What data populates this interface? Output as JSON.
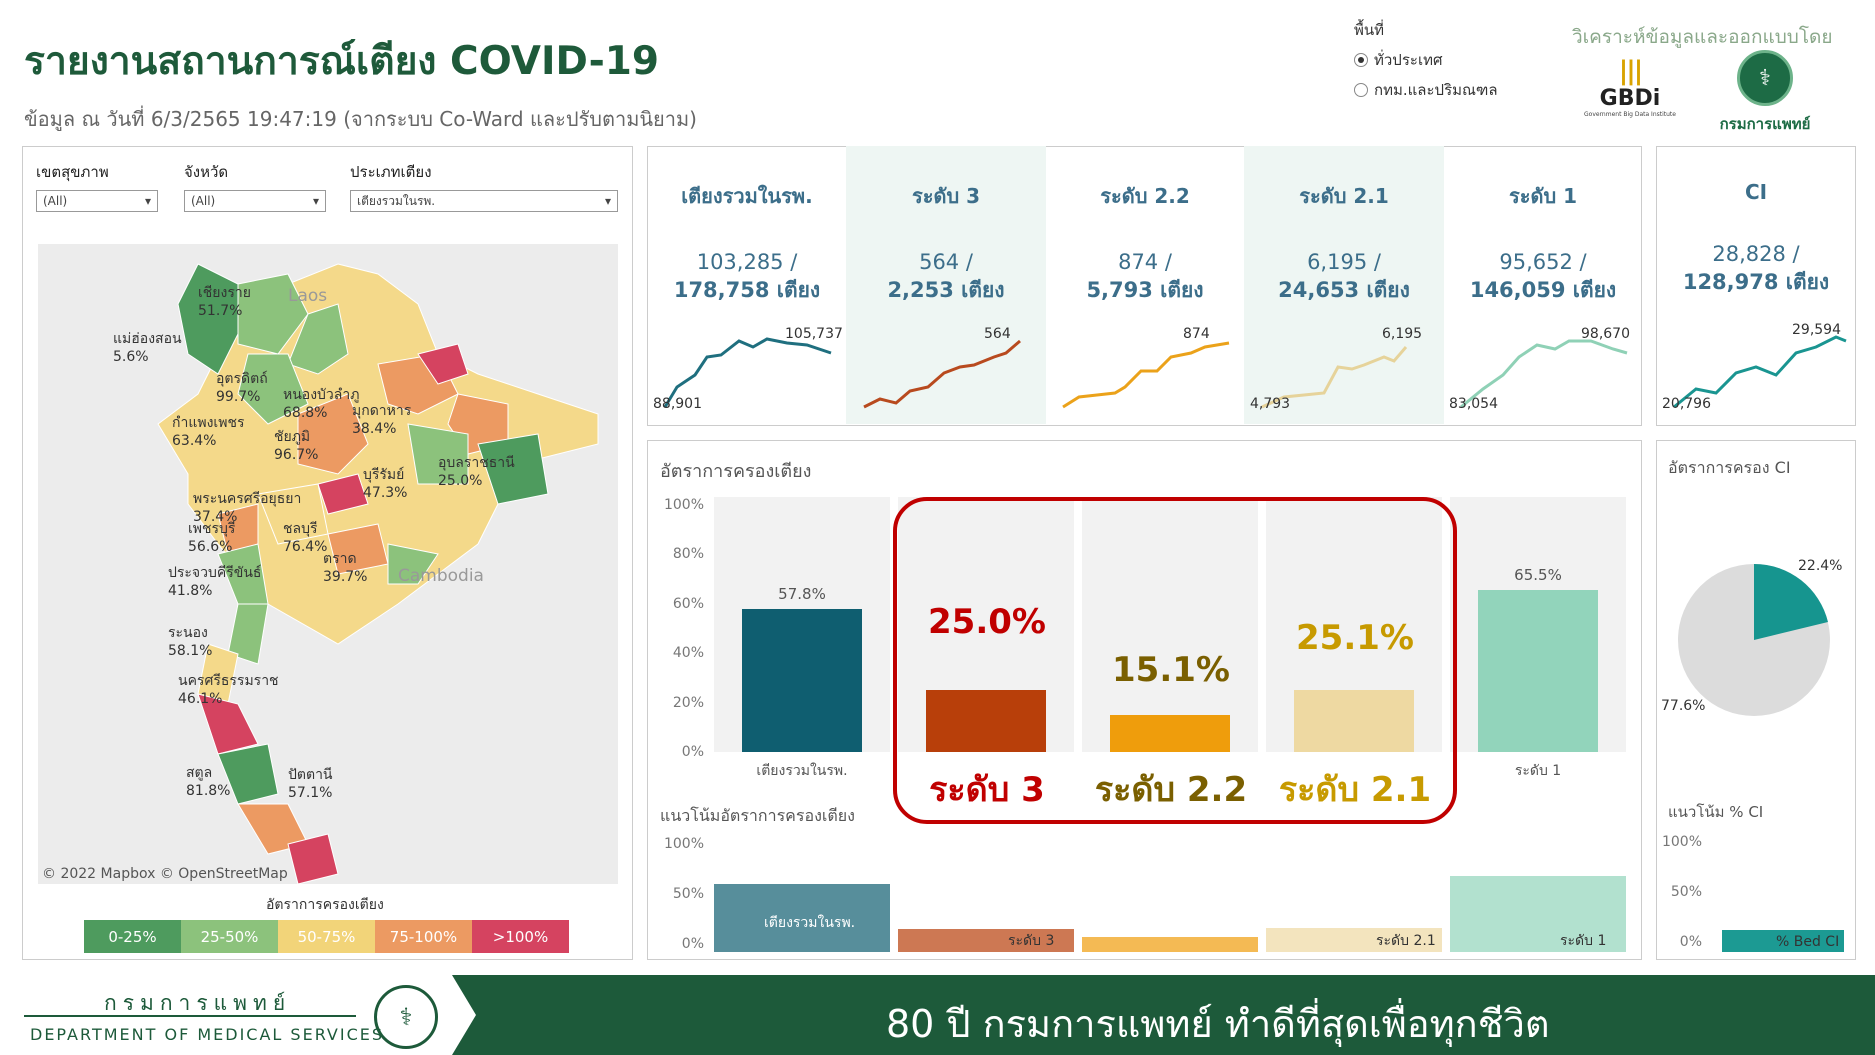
{
  "header": {
    "title": "รายงานสถานการณ์เตียง COVID-19",
    "subtitle": "ข้อมูล ณ วันที่ 6/3/2565 19:47:19 (จากระบบ Co-Ward และปรับตามนิยาม)"
  },
  "area": {
    "label": "พื้นที่",
    "options": [
      "ทั่วประเทศ",
      "กทม.และปริมณฑล"
    ],
    "selected": "ทั่วประเทศ"
  },
  "branding": {
    "analysis_text": "วิเคราะห์ข้อมูลและออกแบบโดย",
    "gbdi": "GBDi",
    "gbdi_sub": "Government Big Data Institute",
    "dms": "กรมการแพทย์"
  },
  "filters": [
    {
      "label": "เขตสุขภาพ",
      "value": "(All)"
    },
    {
      "label": "จังหวัด",
      "value": "(All)"
    },
    {
      "label": "ประเภทเตียง",
      "value": "เตียงรวมในรพ."
    }
  ],
  "map": {
    "country_labels": [
      "Laos",
      "Cambodia"
    ],
    "provinces": [
      {
        "name": "เชียงราย",
        "pct": "51.7%"
      },
      {
        "name": "แม่ฮ่องสอน",
        "pct": "5.6%"
      },
      {
        "name": "อุตรดิตถ์",
        "pct": "99.7%"
      },
      {
        "name": "หนองบัวลำภู",
        "pct": "68.8%"
      },
      {
        "name": "มุกดาหาร",
        "pct": "38.4%"
      },
      {
        "name": "กำแพงเพชร",
        "pct": "63.4%"
      },
      {
        "name": "ชัยภูมิ",
        "pct": "96.7%"
      },
      {
        "name": "อุบลราชธานี",
        "pct": "25.0%"
      },
      {
        "name": "บุรีรัมย์",
        "pct": "47.3%"
      },
      {
        "name": "พระนครศรีอยุธยา",
        "pct": "37.4%"
      },
      {
        "name": "เพชรบุรี",
        "pct": "56.6%"
      },
      {
        "name": "ชลบุรี",
        "pct": "76.4%"
      },
      {
        "name": "ตราด",
        "pct": "39.7%"
      },
      {
        "name": "ประจวบคีรีขันธ์",
        "pct": "41.8%"
      },
      {
        "name": "ระนอง",
        "pct": "58.1%"
      },
      {
        "name": "นครศรีธรรมราช",
        "pct": "46.1%"
      },
      {
        "name": "สตูล",
        "pct": "81.8%"
      },
      {
        "name": "ปัตตานี",
        "pct": "57.1%"
      }
    ],
    "copyright": "© 2022 Mapbox © OpenStreetMap",
    "legend_title": "อัตราการครองเตียง",
    "legend": [
      {
        "label": "0-25%",
        "color": "#4e9b5e"
      },
      {
        "label": "25-50%",
        "color": "#8cc27c"
      },
      {
        "label": "50-75%",
        "color": "#f2d479"
      },
      {
        "label": "75-100%",
        "color": "#ec9a62"
      },
      {
        "label": ">100%",
        "color": "#d54360"
      }
    ]
  },
  "kpis": [
    {
      "title": "เตียงรวมในรพ.",
      "used": "103,285 /",
      "total": "178,758 เตียง",
      "spark_start": "88,901",
      "spark_end": "105,737",
      "color": "#1f6f7f"
    },
    {
      "title": "ระดับ 3",
      "used": "564 /",
      "total": "2,253 เตียง",
      "spark_start": "",
      "spark_end": "564",
      "color": "#b84a1e"
    },
    {
      "title": "ระดับ 2.2",
      "used": "874 /",
      "total": "5,793 เตียง",
      "spark_start": "",
      "spark_end": "874",
      "color": "#eba21a"
    },
    {
      "title": "ระดับ 2.1",
      "used": "6,195 /",
      "total": "24,653 เตียง",
      "spark_start": "4,793",
      "spark_end": "6,195",
      "color": "#e6d39a"
    },
    {
      "title": "ระดับ 1",
      "used": "95,652 /",
      "total": "146,059 เตียง",
      "spark_start": "83,054",
      "spark_end": "98,670",
      "color": "#8fd1b6"
    }
  ],
  "ci": {
    "title": "CI",
    "used": "28,828 /",
    "total": "128,978 เตียง",
    "spark_start": "20,796",
    "spark_end": "29,594",
    "occ_title": "อัตราการครอง CI",
    "pie_used_label": "22.4%",
    "pie_free_label": "77.6%",
    "trend_title": "แนวโน้ม % CI",
    "trend_series": "% Bed CI"
  },
  "occupancy": {
    "title": "อัตราการครองเตียง",
    "trend_title": "แนวโน้มอัตราการครองเตียง",
    "y_ticks": [
      "100%",
      "80%",
      "60%",
      "40%",
      "20%",
      "0%"
    ],
    "trend_ticks": [
      "100%",
      "50%",
      "0%"
    ]
  },
  "chart_data": {
    "type": "bar",
    "title": "อัตราการครองเตียง",
    "categories": [
      "เตียงรวมในรพ.",
      "ระดับ 3",
      "ระดับ 2.2",
      "ระดับ 2.1",
      "ระดับ 1"
    ],
    "values": [
      57.8,
      25.0,
      15.1,
      25.1,
      65.5
    ],
    "value_labels": [
      "57.8%",
      "25.0%",
      "15.1%",
      "25.1%",
      "65.5%"
    ],
    "colors": [
      "#0f5e70",
      "#b83f0a",
      "#ef9d0c",
      "#eed9a2",
      "#92d4bb"
    ],
    "ylim": [
      0,
      100
    ]
  },
  "annotations": {
    "labels": [
      "ระดับ 3",
      "ระดับ 2.2",
      "ระดับ 2.1"
    ],
    "colors": [
      "#c00000",
      "#7a5f00",
      "#c79a00"
    ]
  },
  "footer": {
    "org_th": "กรมการแพทย์",
    "org_en": "DEPARTMENT OF MEDICAL SERVICES",
    "slogan": "80 ปี กรมการแพทย์ ทำดีที่สุดเพื่อทุกชีวิต"
  }
}
